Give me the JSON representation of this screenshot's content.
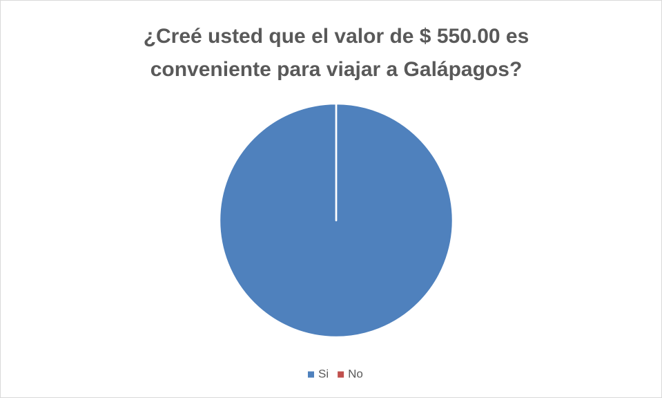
{
  "chart_data": {
    "type": "pie",
    "title": [
      "¿Creé usted que el valor de $ 550.00 es",
      "conveniente para viajar a Galápagos?"
    ],
    "categories": [
      "Si",
      "No"
    ],
    "values": [
      100,
      0
    ],
    "colors": [
      "#4f81bd",
      "#c0504d"
    ],
    "legend": "bottom"
  }
}
